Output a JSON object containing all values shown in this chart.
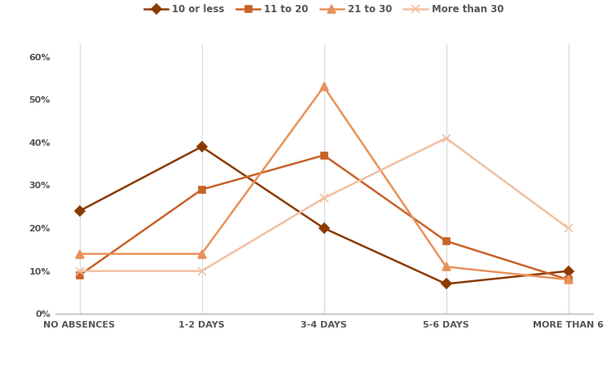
{
  "categories": [
    "NO ABSENCES",
    "1-2 DAYS",
    "3-4 DAYS",
    "5-6 DAYS",
    "MORE THAN 6"
  ],
  "series": [
    {
      "label": "10 or less",
      "values": [
        24,
        39,
        20,
        7,
        10
      ],
      "color": "#8B3A00",
      "marker": "D",
      "linewidth": 1.8,
      "markersize": 6
    },
    {
      "label": "11 to 20",
      "values": [
        9,
        29,
        37,
        17,
        8
      ],
      "color": "#C8622A",
      "marker": "s",
      "linewidth": 1.8,
      "markersize": 6
    },
    {
      "label": "21 to 30",
      "values": [
        14,
        14,
        53,
        11,
        8
      ],
      "color": "#E8925A",
      "marker": "^",
      "linewidth": 1.8,
      "markersize": 7
    },
    {
      "label": "More than 30",
      "values": [
        10,
        10,
        27,
        41,
        20
      ],
      "color": "#F0C0A0",
      "marker": "x",
      "linewidth": 1.8,
      "markersize": 7
    }
  ],
  "ylim": [
    0,
    63
  ],
  "yticks": [
    0,
    10,
    20,
    30,
    40,
    50,
    60
  ],
  "ytick_labels": [
    "0%",
    "10%",
    "20%",
    "30%",
    "40%",
    "50%",
    "60%"
  ],
  "grid_color": "#D8D8D8",
  "background_color": "#FFFFFF",
  "legend_fontsize": 8.5,
  "tick_fontsize": 8,
  "axis_label_color": "#555555"
}
